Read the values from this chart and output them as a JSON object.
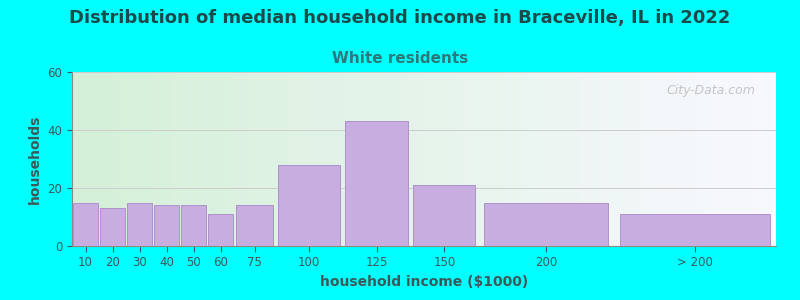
{
  "title": "Distribution of median household income in Braceville, IL in 2022",
  "subtitle": "White residents",
  "xlabel": "household income ($1000)",
  "ylabel": "households",
  "background_color": "#00ffff",
  "plot_bg_color_left": "#d4f0d8",
  "plot_bg_color_right": "#f8f8ff",
  "bar_color": "#c8aee0",
  "bar_edge_color": "#b090cc",
  "title_color": "#1a4a4a",
  "subtitle_color": "#2a7a7a",
  "axis_label_color": "#3a5a5a",
  "tick_color": "#3a5a5a",
  "watermark": "City-Data.com",
  "categories": [
    "10",
    "20",
    "30",
    "40",
    "50",
    "60",
    "75",
    "100",
    "125",
    "150",
    "200",
    "> 200"
  ],
  "bin_lefts": [
    0,
    10,
    20,
    30,
    40,
    50,
    60,
    75,
    100,
    125,
    150,
    200
  ],
  "bin_widths": [
    10,
    10,
    10,
    10,
    10,
    10,
    15,
    25,
    25,
    25,
    50,
    60
  ],
  "values": [
    15,
    13,
    15,
    14,
    14,
    11,
    14,
    28,
    43,
    21,
    15,
    11
  ],
  "ylim": [
    0,
    60
  ],
  "yticks": [
    0,
    20,
    40,
    60
  ],
  "xlim": [
    0,
    260
  ],
  "title_fontsize": 13,
  "subtitle_fontsize": 11,
  "axis_label_fontsize": 10,
  "tick_fontsize": 8.5,
  "watermark_fontsize": 9
}
